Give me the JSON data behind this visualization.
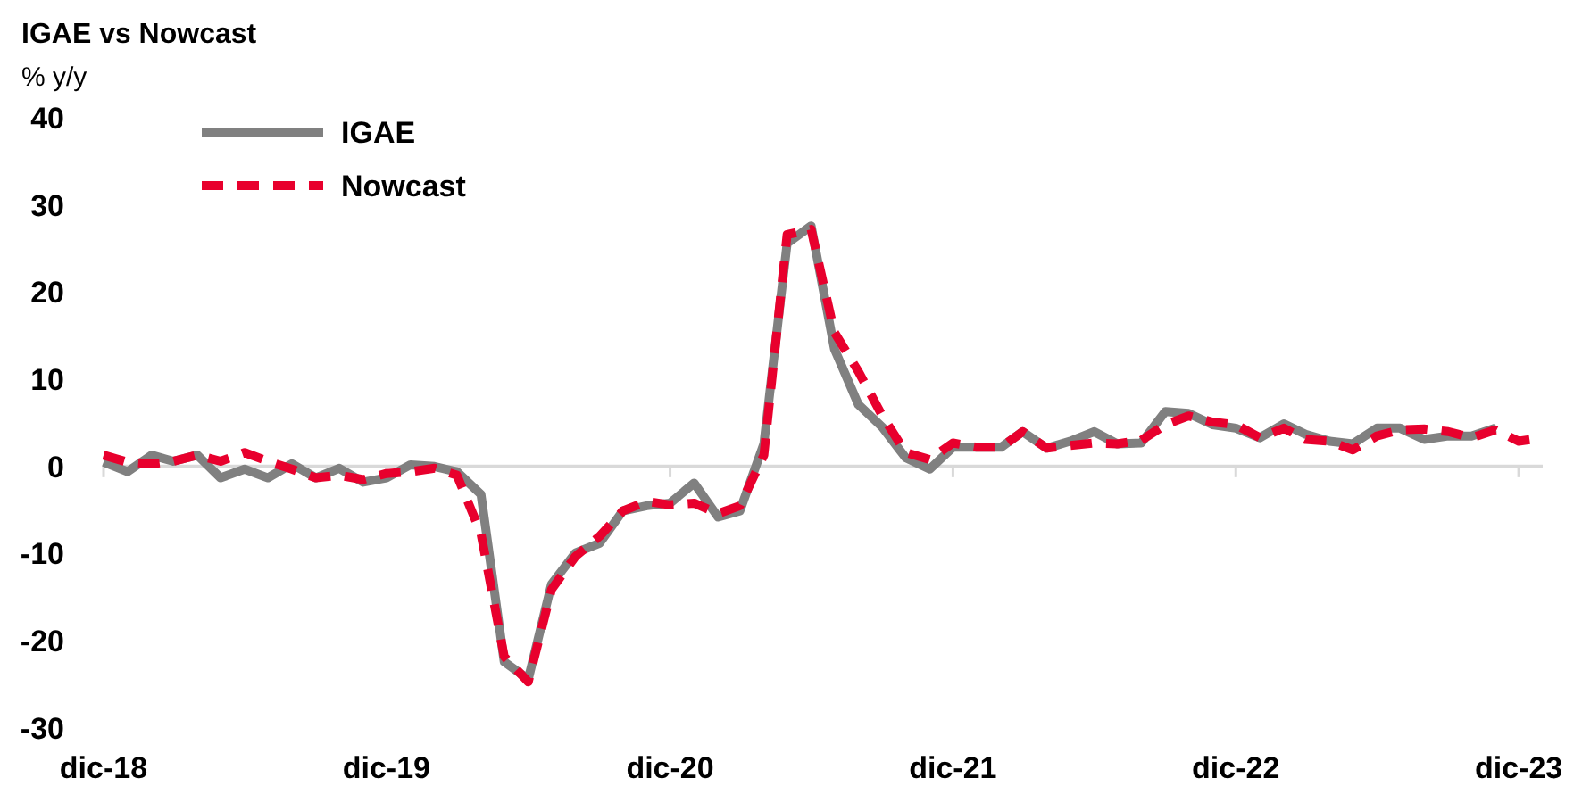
{
  "chart_data": {
    "type": "line",
    "title": "IGAE vs Nowcast",
    "ylabel": "% y/y",
    "x": [
      "2018-12",
      "2019-01",
      "2019-02",
      "2019-03",
      "2019-04",
      "2019-05",
      "2019-06",
      "2019-07",
      "2019-08",
      "2019-09",
      "2019-10",
      "2019-11",
      "2019-12",
      "2020-01",
      "2020-02",
      "2020-03",
      "2020-04",
      "2020-05",
      "2020-06",
      "2020-07",
      "2020-08",
      "2020-09",
      "2020-10",
      "2020-11",
      "2020-12",
      "2021-01",
      "2021-02",
      "2021-03",
      "2021-04",
      "2021-05",
      "2021-06",
      "2021-07",
      "2021-08",
      "2021-09",
      "2021-10",
      "2021-11",
      "2021-12",
      "2022-01",
      "2022-02",
      "2022-03",
      "2022-04",
      "2022-05",
      "2022-06",
      "2022-07",
      "2022-08",
      "2022-09",
      "2022-10",
      "2022-11",
      "2022-12",
      "2023-01",
      "2023-02",
      "2023-03",
      "2023-04",
      "2023-05",
      "2023-06",
      "2023-07",
      "2023-08",
      "2023-09",
      "2023-10",
      "2023-11",
      "2023-12",
      "2024-01"
    ],
    "series": [
      {
        "name": "IGAE",
        "color": "#808080",
        "line_style": "solid",
        "values": [
          0.5,
          -0.6,
          1.3,
          0.6,
          1.3,
          -1.3,
          -0.3,
          -1.3,
          0.3,
          -1.3,
          -0.2,
          -1.8,
          -1.3,
          0.2,
          0,
          -0.6,
          -3.2,
          -22.4,
          -24.4,
          -13.5,
          -9.9,
          -8.8,
          -5.1,
          -4.5,
          -4.2,
          -1.9,
          -5.8,
          -5.1,
          2.6,
          25.6,
          27.6,
          13.5,
          7.1,
          4.5,
          1.0,
          -0.3,
          2.2,
          2.2,
          2.2,
          4.0,
          2.1,
          2.9,
          4.0,
          2.6,
          2.7,
          6.3,
          6.1,
          4.8,
          4.4,
          3.3,
          4.9,
          3.7,
          2.9,
          2.6,
          4.4,
          4.4,
          3.1,
          3.5,
          3.5,
          4.4,
          null,
          null
        ]
      },
      {
        "name": "Nowcast",
        "color": "#e8002d",
        "line_style": "dashed",
        "values": [
          1.3,
          0.5,
          0.3,
          0.6,
          1.3,
          0.6,
          1.6,
          0.6,
          -0.3,
          -1.3,
          -1.0,
          -1.5,
          -0.8,
          -0.6,
          -0.2,
          -1.0,
          -7.7,
          -21.8,
          -24.7,
          -14.1,
          -10.3,
          -8.0,
          -5.1,
          -4.0,
          -4.4,
          -4.2,
          -5.4,
          -4.5,
          1.3,
          26.6,
          27.2,
          15.4,
          10.9,
          5.8,
          1.6,
          0.8,
          2.7,
          2.2,
          2.2,
          4.0,
          2.1,
          2.4,
          2.7,
          2.6,
          3.0,
          4.8,
          5.8,
          5.1,
          4.8,
          3.3,
          4.4,
          3.1,
          2.9,
          1.9,
          3.5,
          4.2,
          4.3,
          4.0,
          3.3,
          4.2,
          2.9,
          3.3
        ]
      }
    ],
    "xlim": [
      "2018-12",
      "2024-01"
    ],
    "xticks": [
      {
        "value": "2018-12",
        "label": "dic-18"
      },
      {
        "value": "2019-12",
        "label": "dic-19"
      },
      {
        "value": "2020-12",
        "label": "dic-20"
      },
      {
        "value": "2021-12",
        "label": "dic-21"
      },
      {
        "value": "2022-12",
        "label": "dic-22"
      },
      {
        "value": "2023-12",
        "label": "dic-23"
      }
    ],
    "ylim": [
      -30,
      40
    ],
    "yticks": [
      -30,
      -20,
      -10,
      0,
      10,
      20,
      30,
      40
    ],
    "ref_lines": [
      {
        "axis": "y",
        "value": 0,
        "color": "#d9d9d9"
      }
    ],
    "grid": false,
    "legend": "top left",
    "marker": "none"
  }
}
